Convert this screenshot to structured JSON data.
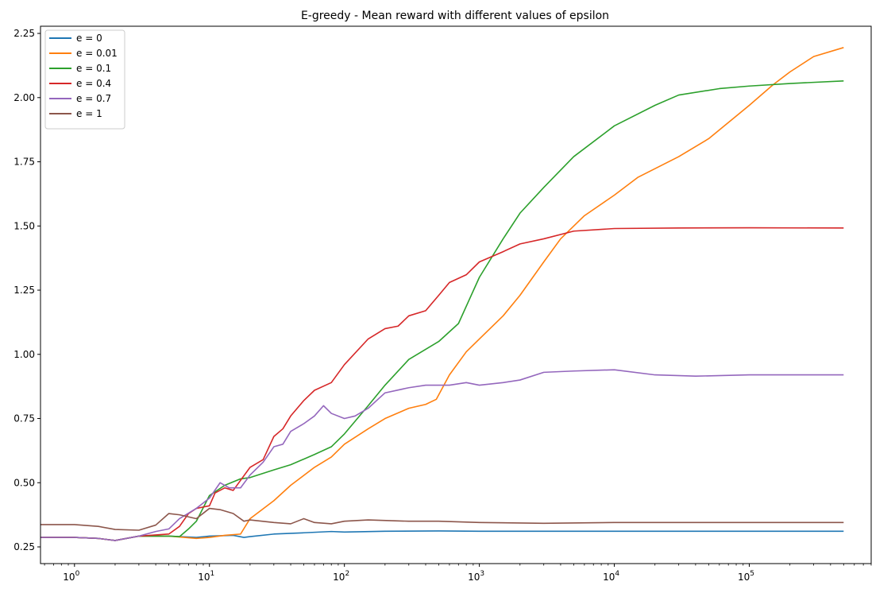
{
  "chart_data": {
    "type": "line",
    "title": "E-greedy - Mean reward with different values of epsilon",
    "xlabel": "",
    "ylabel": "",
    "xscale": "log",
    "xlim": [
      0.56,
      800000
    ],
    "ylim": [
      0.185,
      2.278
    ],
    "yticks": [
      0.25,
      0.5,
      0.75,
      1.0,
      1.25,
      1.5,
      1.75,
      2.0,
      2.25
    ],
    "ytick_labels": [
      "0.25",
      "0.50",
      "0.75",
      "1.00",
      "1.25",
      "1.50",
      "1.75",
      "2.00",
      "2.25"
    ],
    "xticks": [
      1,
      10,
      100,
      1000,
      10000,
      100000
    ],
    "xtick_labels": [
      {
        "base": "10",
        "exp": "0"
      },
      {
        "base": "10",
        "exp": "1"
      },
      {
        "base": "10",
        "exp": "2"
      },
      {
        "base": "10",
        "exp": "3"
      },
      {
        "base": "10",
        "exp": "4"
      },
      {
        "base": "10",
        "exp": "5"
      }
    ],
    "grid": false,
    "legend_position": "upper-left",
    "series": [
      {
        "name": "e = 0",
        "color": "#1f77b4",
        "points": [
          [
            0.56,
            0.287
          ],
          [
            1,
            0.287
          ],
          [
            1.5,
            0.283
          ],
          [
            2,
            0.275
          ],
          [
            3,
            0.292
          ],
          [
            5,
            0.292
          ],
          [
            8,
            0.287
          ],
          [
            10,
            0.292
          ],
          [
            15,
            0.295
          ],
          [
            18,
            0.287
          ],
          [
            20,
            0.29
          ],
          [
            30,
            0.3
          ],
          [
            50,
            0.305
          ],
          [
            80,
            0.31
          ],
          [
            100,
            0.308
          ],
          [
            200,
            0.311
          ],
          [
            500,
            0.312
          ],
          [
            1000,
            0.311
          ],
          [
            10000,
            0.311
          ],
          [
            100000,
            0.311
          ],
          [
            500000,
            0.311
          ]
        ]
      },
      {
        "name": "e = 0.01",
        "color": "#ff7f0e",
        "points": [
          [
            0.56,
            0.287
          ],
          [
            1,
            0.287
          ],
          [
            1.5,
            0.283
          ],
          [
            2,
            0.275
          ],
          [
            3,
            0.292
          ],
          [
            5,
            0.292
          ],
          [
            8,
            0.283
          ],
          [
            10,
            0.287
          ],
          [
            13,
            0.295
          ],
          [
            17,
            0.3
          ],
          [
            20,
            0.36
          ],
          [
            30,
            0.43
          ],
          [
            40,
            0.49
          ],
          [
            60,
            0.56
          ],
          [
            80,
            0.6
          ],
          [
            100,
            0.65
          ],
          [
            150,
            0.71
          ],
          [
            200,
            0.75
          ],
          [
            300,
            0.79
          ],
          [
            400,
            0.805
          ],
          [
            480,
            0.825
          ],
          [
            600,
            0.92
          ],
          [
            800,
            1.01
          ],
          [
            1000,
            1.06
          ],
          [
            1500,
            1.15
          ],
          [
            2000,
            1.23
          ],
          [
            3000,
            1.36
          ],
          [
            4000,
            1.45
          ],
          [
            6000,
            1.54
          ],
          [
            10000,
            1.62
          ],
          [
            15000,
            1.69
          ],
          [
            30000,
            1.77
          ],
          [
            50000,
            1.84
          ],
          [
            100000,
            1.97
          ],
          [
            150000,
            2.05
          ],
          [
            200000,
            2.1
          ],
          [
            300000,
            2.16
          ],
          [
            500000,
            2.195
          ]
        ]
      },
      {
        "name": "e = 0.1",
        "color": "#2ca02c",
        "points": [
          [
            0.56,
            0.287
          ],
          [
            1,
            0.287
          ],
          [
            1.5,
            0.283
          ],
          [
            2,
            0.275
          ],
          [
            3,
            0.292
          ],
          [
            5,
            0.292
          ],
          [
            6,
            0.29
          ],
          [
            7,
            0.32
          ],
          [
            8,
            0.35
          ],
          [
            10,
            0.45
          ],
          [
            13,
            0.49
          ],
          [
            17,
            0.515
          ],
          [
            20,
            0.52
          ],
          [
            30,
            0.55
          ],
          [
            40,
            0.57
          ],
          [
            60,
            0.61
          ],
          [
            80,
            0.64
          ],
          [
            100,
            0.69
          ],
          [
            150,
            0.8
          ],
          [
            200,
            0.88
          ],
          [
            300,
            0.98
          ],
          [
            500,
            1.05
          ],
          [
            700,
            1.12
          ],
          [
            1000,
            1.3
          ],
          [
            1500,
            1.45
          ],
          [
            2000,
            1.55
          ],
          [
            3000,
            1.65
          ],
          [
            5000,
            1.77
          ],
          [
            10000,
            1.89
          ],
          [
            20000,
            1.97
          ],
          [
            30000,
            2.01
          ],
          [
            60000,
            2.035
          ],
          [
            100000,
            2.045
          ],
          [
            200000,
            2.055
          ],
          [
            500000,
            2.065
          ]
        ]
      },
      {
        "name": "e = 0.4",
        "color": "#d62728",
        "points": [
          [
            0.56,
            0.287
          ],
          [
            1,
            0.287
          ],
          [
            1.5,
            0.283
          ],
          [
            2,
            0.275
          ],
          [
            3,
            0.292
          ],
          [
            5,
            0.3
          ],
          [
            6,
            0.33
          ],
          [
            7,
            0.38
          ],
          [
            8,
            0.4
          ],
          [
            10,
            0.41
          ],
          [
            11,
            0.46
          ],
          [
            13,
            0.48
          ],
          [
            15,
            0.47
          ],
          [
            20,
            0.56
          ],
          [
            25,
            0.59
          ],
          [
            30,
            0.68
          ],
          [
            35,
            0.71
          ],
          [
            40,
            0.76
          ],
          [
            50,
            0.82
          ],
          [
            60,
            0.86
          ],
          [
            80,
            0.89
          ],
          [
            100,
            0.96
          ],
          [
            150,
            1.06
          ],
          [
            200,
            1.1
          ],
          [
            250,
            1.11
          ],
          [
            300,
            1.15
          ],
          [
            400,
            1.17
          ],
          [
            500,
            1.23
          ],
          [
            600,
            1.28
          ],
          [
            800,
            1.31
          ],
          [
            1000,
            1.36
          ],
          [
            1500,
            1.4
          ],
          [
            2000,
            1.43
          ],
          [
            3000,
            1.45
          ],
          [
            5000,
            1.48
          ],
          [
            10000,
            1.49
          ],
          [
            30000,
            1.492
          ],
          [
            100000,
            1.493
          ],
          [
            500000,
            1.492
          ]
        ]
      },
      {
        "name": "e = 0.7",
        "color": "#9467bd",
        "points": [
          [
            0.56,
            0.287
          ],
          [
            1,
            0.287
          ],
          [
            1.5,
            0.283
          ],
          [
            2,
            0.275
          ],
          [
            3,
            0.292
          ],
          [
            4,
            0.31
          ],
          [
            5,
            0.32
          ],
          [
            6,
            0.36
          ],
          [
            8,
            0.4
          ],
          [
            10,
            0.44
          ],
          [
            12,
            0.5
          ],
          [
            14,
            0.48
          ],
          [
            17,
            0.48
          ],
          [
            20,
            0.53
          ],
          [
            25,
            0.58
          ],
          [
            30,
            0.64
          ],
          [
            35,
            0.65
          ],
          [
            40,
            0.7
          ],
          [
            50,
            0.73
          ],
          [
            60,
            0.76
          ],
          [
            70,
            0.8
          ],
          [
            80,
            0.77
          ],
          [
            100,
            0.75
          ],
          [
            120,
            0.76
          ],
          [
            150,
            0.79
          ],
          [
            200,
            0.85
          ],
          [
            300,
            0.87
          ],
          [
            400,
            0.88
          ],
          [
            500,
            0.88
          ],
          [
            600,
            0.88
          ],
          [
            800,
            0.89
          ],
          [
            1000,
            0.88
          ],
          [
            1500,
            0.89
          ],
          [
            2000,
            0.9
          ],
          [
            3000,
            0.93
          ],
          [
            5000,
            0.935
          ],
          [
            10000,
            0.94
          ],
          [
            20000,
            0.92
          ],
          [
            40000,
            0.915
          ],
          [
            100000,
            0.92
          ],
          [
            500000,
            0.92
          ]
        ]
      },
      {
        "name": "e = 1",
        "color": "#8c564b",
        "points": [
          [
            0.56,
            0.337
          ],
          [
            1,
            0.337
          ],
          [
            1.5,
            0.33
          ],
          [
            2,
            0.318
          ],
          [
            3,
            0.315
          ],
          [
            4,
            0.335
          ],
          [
            5,
            0.38
          ],
          [
            6,
            0.375
          ],
          [
            8,
            0.36
          ],
          [
            10,
            0.4
          ],
          [
            12,
            0.395
          ],
          [
            15,
            0.38
          ],
          [
            18,
            0.35
          ],
          [
            20,
            0.355
          ],
          [
            30,
            0.345
          ],
          [
            40,
            0.34
          ],
          [
            50,
            0.36
          ],
          [
            60,
            0.345
          ],
          [
            80,
            0.34
          ],
          [
            100,
            0.35
          ],
          [
            150,
            0.355
          ],
          [
            300,
            0.35
          ],
          [
            500,
            0.35
          ],
          [
            1000,
            0.345
          ],
          [
            3000,
            0.342
          ],
          [
            10000,
            0.345
          ],
          [
            100000,
            0.345
          ],
          [
            500000,
            0.345
          ]
        ]
      }
    ]
  }
}
